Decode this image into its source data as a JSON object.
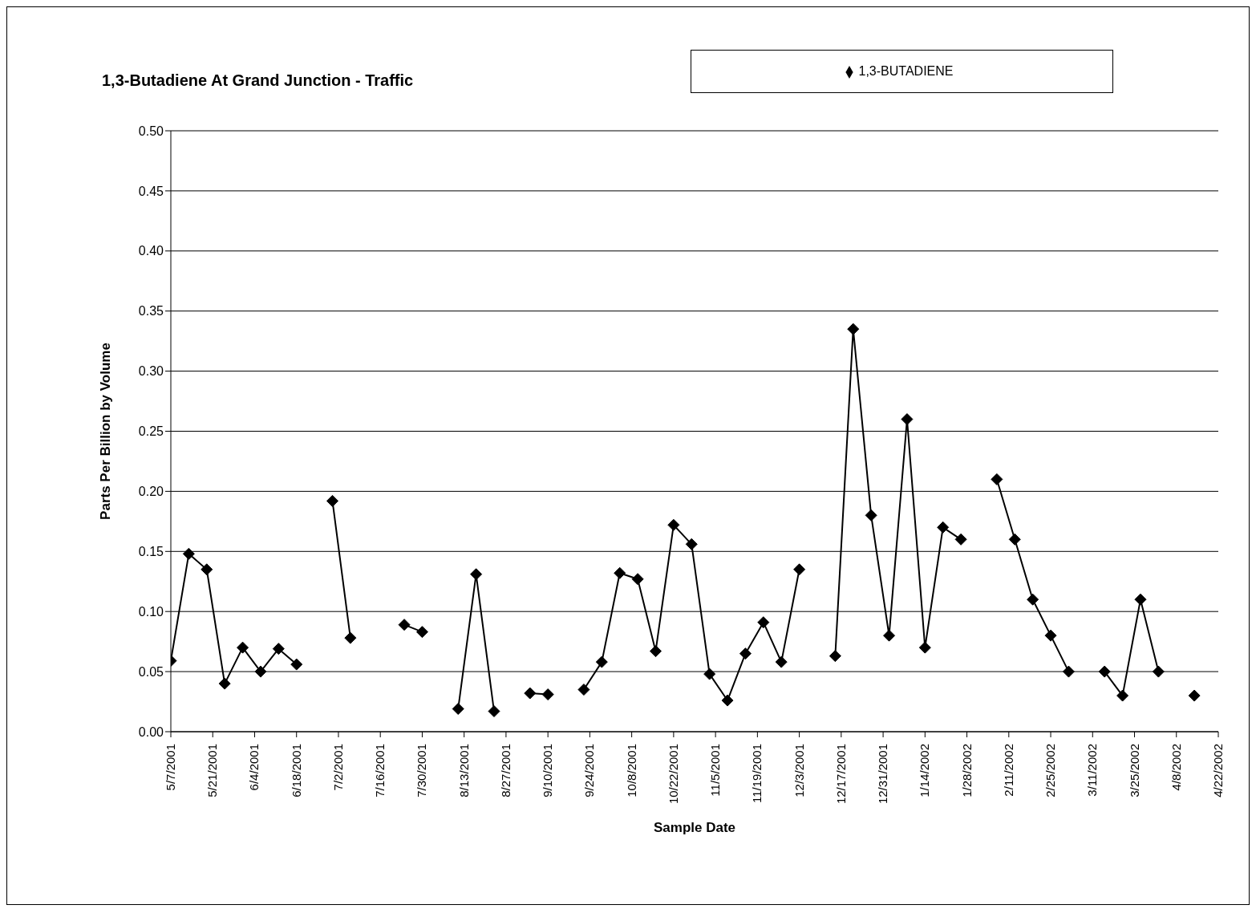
{
  "chart_data": {
    "type": "line",
    "title": "1,3-Butadiene At Grand Junction - Traffic",
    "xlabel": "Sample Date",
    "ylabel": "Parts Per Billion by Volume",
    "x": [
      "2001-05-07",
      "2001-05-13",
      "2001-05-19",
      "2001-05-25",
      "2001-05-31",
      "2001-06-06",
      "2001-06-12",
      "2001-06-18",
      "2001-06-24",
      "2001-06-30",
      "2001-07-06",
      "2001-07-12",
      "2001-07-24",
      "2001-07-30",
      "2001-08-05",
      "2001-08-11",
      "2001-08-17",
      "2001-08-23",
      "2001-08-29",
      "2001-09-04",
      "2001-09-10",
      "2001-09-16",
      "2001-09-22",
      "2001-09-28",
      "2001-10-04",
      "2001-10-10",
      "2001-10-16",
      "2001-10-22",
      "2001-10-28",
      "2001-11-03",
      "2001-11-09",
      "2001-11-15",
      "2001-11-21",
      "2001-11-27",
      "2001-12-03",
      "2001-12-09",
      "2001-12-15",
      "2001-12-21",
      "2001-12-27",
      "2002-01-02",
      "2002-01-08",
      "2002-01-14",
      "2002-01-20",
      "2002-01-26",
      "2002-02-01",
      "2002-02-07",
      "2002-02-13",
      "2002-02-19",
      "2002-02-25",
      "2002-03-03",
      "2002-03-09",
      "2002-03-15",
      "2002-03-21",
      "2002-03-27",
      "2002-04-02",
      "2002-04-08",
      "2002-04-14"
    ],
    "series": [
      {
        "name": "1,3-BUTADIENE",
        "color": "#000000",
        "values": [
          0.059,
          0.148,
          0.135,
          0.04,
          0.07,
          0.05,
          0.069,
          0.056,
          null,
          0.192,
          0.078,
          null,
          0.089,
          0.083,
          null,
          0.019,
          0.131,
          0.017,
          null,
          0.032,
          0.031,
          null,
          0.035,
          0.058,
          0.132,
          0.127,
          0.067,
          0.172,
          0.156,
          0.048,
          0.026,
          0.065,
          0.091,
          0.058,
          0.135,
          null,
          0.063,
          0.335,
          0.18,
          0.08,
          0.26,
          0.07,
          0.17,
          0.16,
          null,
          0.21,
          0.16,
          0.11,
          0.08,
          0.05,
          null,
          0.05,
          0.03,
          0.11,
          0.05,
          null,
          0.03
        ]
      }
    ],
    "xlim": [
      "2001-05-07",
      "2002-04-22"
    ],
    "xticks": [
      {
        "value": "2001-05-07",
        "label": "5/7/2001"
      },
      {
        "value": "2001-05-21",
        "label": "5/21/2001"
      },
      {
        "value": "2001-06-04",
        "label": "6/4/2001"
      },
      {
        "value": "2001-06-18",
        "label": "6/18/2001"
      },
      {
        "value": "2001-07-02",
        "label": "7/2/2001"
      },
      {
        "value": "2001-07-16",
        "label": "7/16/2001"
      },
      {
        "value": "2001-07-30",
        "label": "7/30/2001"
      },
      {
        "value": "2001-08-13",
        "label": "8/13/2001"
      },
      {
        "value": "2001-08-27",
        "label": "8/27/2001"
      },
      {
        "value": "2001-09-10",
        "label": "9/10/2001"
      },
      {
        "value": "2001-09-24",
        "label": "9/24/2001"
      },
      {
        "value": "2001-10-08",
        "label": "10/8/2001"
      },
      {
        "value": "2001-10-22",
        "label": "10/22/2001"
      },
      {
        "value": "2001-11-05",
        "label": "11/5/2001"
      },
      {
        "value": "2001-11-19",
        "label": "11/19/2001"
      },
      {
        "value": "2001-12-03",
        "label": "12/3/2001"
      },
      {
        "value": "2001-12-17",
        "label": "12/17/2001"
      },
      {
        "value": "2001-12-31",
        "label": "12/31/2001"
      },
      {
        "value": "2002-01-14",
        "label": "1/14/2002"
      },
      {
        "value": "2002-01-28",
        "label": "1/28/2002"
      },
      {
        "value": "2002-02-11",
        "label": "2/11/2002"
      },
      {
        "value": "2002-02-25",
        "label": "2/25/2002"
      },
      {
        "value": "2002-03-11",
        "label": "3/11/2002"
      },
      {
        "value": "2002-03-25",
        "label": "3/25/2002"
      },
      {
        "value": "2002-04-08",
        "label": "4/8/2002"
      },
      {
        "value": "2002-04-22",
        "label": "4/22/2002"
      }
    ],
    "ylim": [
      0,
      0.5
    ],
    "yticks": [
      {
        "value": 0,
        "label": "0.00"
      },
      {
        "value": 0.05,
        "label": "0.05"
      },
      {
        "value": 0.1,
        "label": "0.10"
      },
      {
        "value": 0.15,
        "label": "0.15"
      },
      {
        "value": 0.2,
        "label": "0.20"
      },
      {
        "value": 0.25,
        "label": "0.25"
      },
      {
        "value": 0.3,
        "label": "0.30"
      },
      {
        "value": 0.35,
        "label": "0.35"
      },
      {
        "value": 0.4,
        "label": "0.40"
      },
      {
        "value": 0.45,
        "label": "0.45"
      },
      {
        "value": 0.5,
        "label": "0.50"
      }
    ],
    "grid": "y",
    "legend": "top right",
    "marker": "diamond",
    "line_style": "solid"
  }
}
